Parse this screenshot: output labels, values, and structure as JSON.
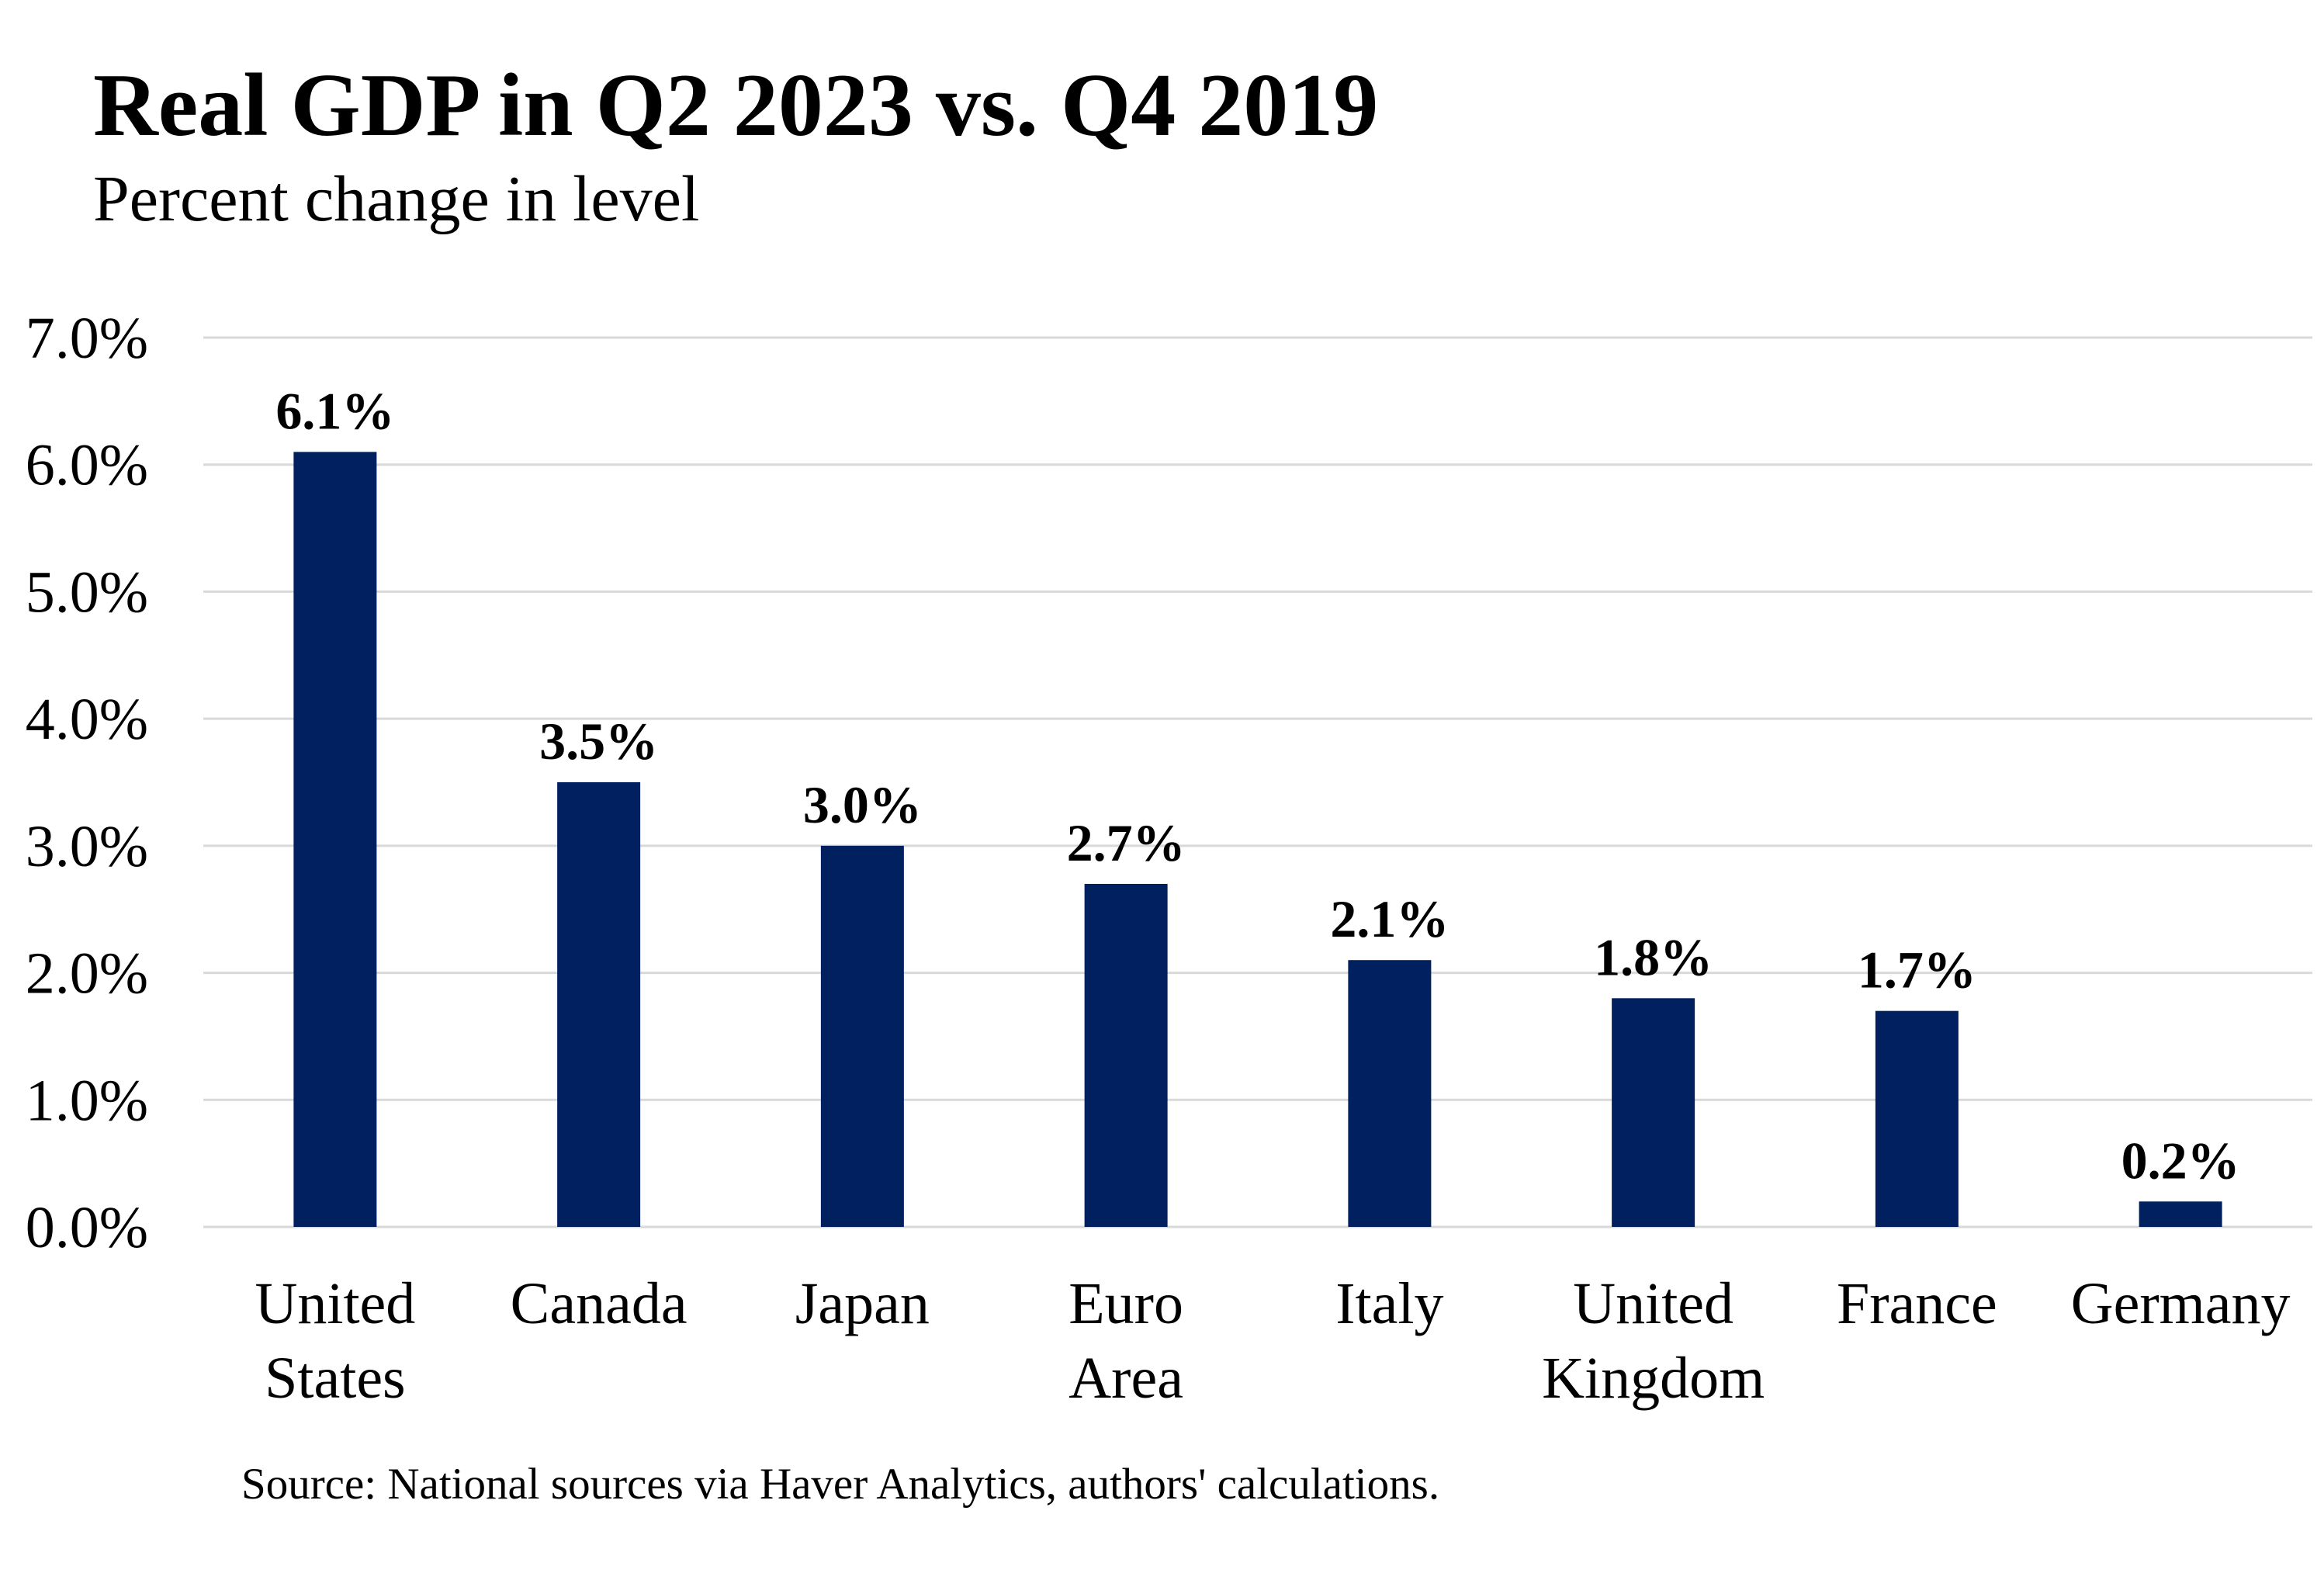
{
  "chart_data": {
    "type": "bar",
    "title": "Real GDP in Q2 2023 vs. Q4 2019",
    "subtitle": "Percent change in level",
    "categories": [
      [
        "United",
        "States"
      ],
      [
        "Canada"
      ],
      [
        "Japan"
      ],
      [
        "Euro",
        "Area"
      ],
      [
        "Italy"
      ],
      [
        "United",
        "Kingdom"
      ],
      [
        "France"
      ],
      [
        "Germany"
      ]
    ],
    "values": [
      6.1,
      3.5,
      3.0,
      2.7,
      2.1,
      1.8,
      1.7,
      0.2
    ],
    "data_labels": [
      "6.1%",
      "3.5%",
      "3.0%",
      "2.7%",
      "2.1%",
      "1.8%",
      "1.7%",
      "0.2%"
    ],
    "yticks": [
      "0.0%",
      "1.0%",
      "2.0%",
      "3.0%",
      "4.0%",
      "5.0%",
      "6.0%",
      "7.0%"
    ],
    "ylim": [
      0,
      7
    ],
    "xlabel": "",
    "ylabel": "",
    "grid": true,
    "legend": "none",
    "bar_color": "#002060",
    "grid_color": "#d9d9d9",
    "source": "Source: National sources via Haver Analytics, authors' calculations."
  }
}
